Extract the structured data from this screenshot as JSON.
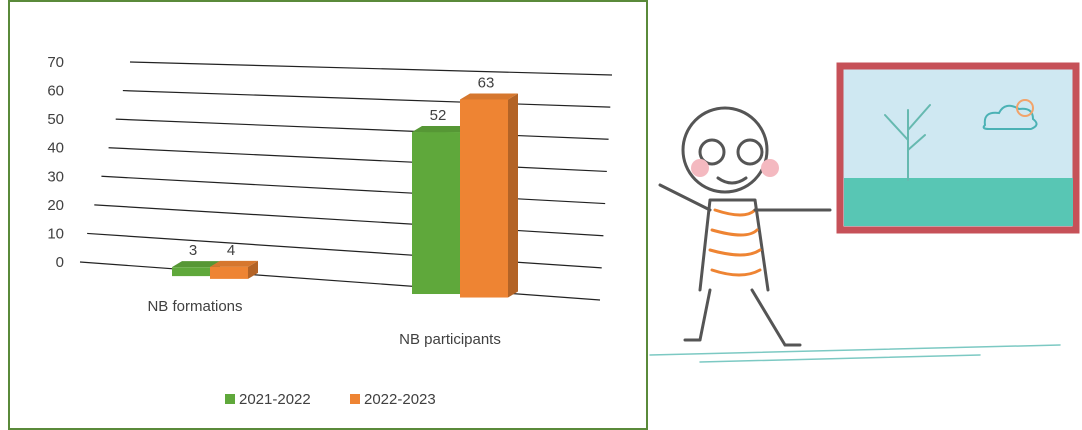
{
  "chart_data": {
    "type": "bar3d",
    "categories": [
      "NB formations",
      "NB participants"
    ],
    "series": [
      {
        "name": "2021-2022",
        "color": "#5fa83b",
        "values": [
          3,
          52
        ]
      },
      {
        "name": "2022-2023",
        "color": "#ee8433",
        "values": [
          4,
          63
        ]
      }
    ],
    "ylim": [
      0,
      70
    ],
    "yticks": [
      0,
      10,
      20,
      30,
      40,
      50,
      60,
      70
    ],
    "grid": true,
    "legend": "bottom"
  }
}
